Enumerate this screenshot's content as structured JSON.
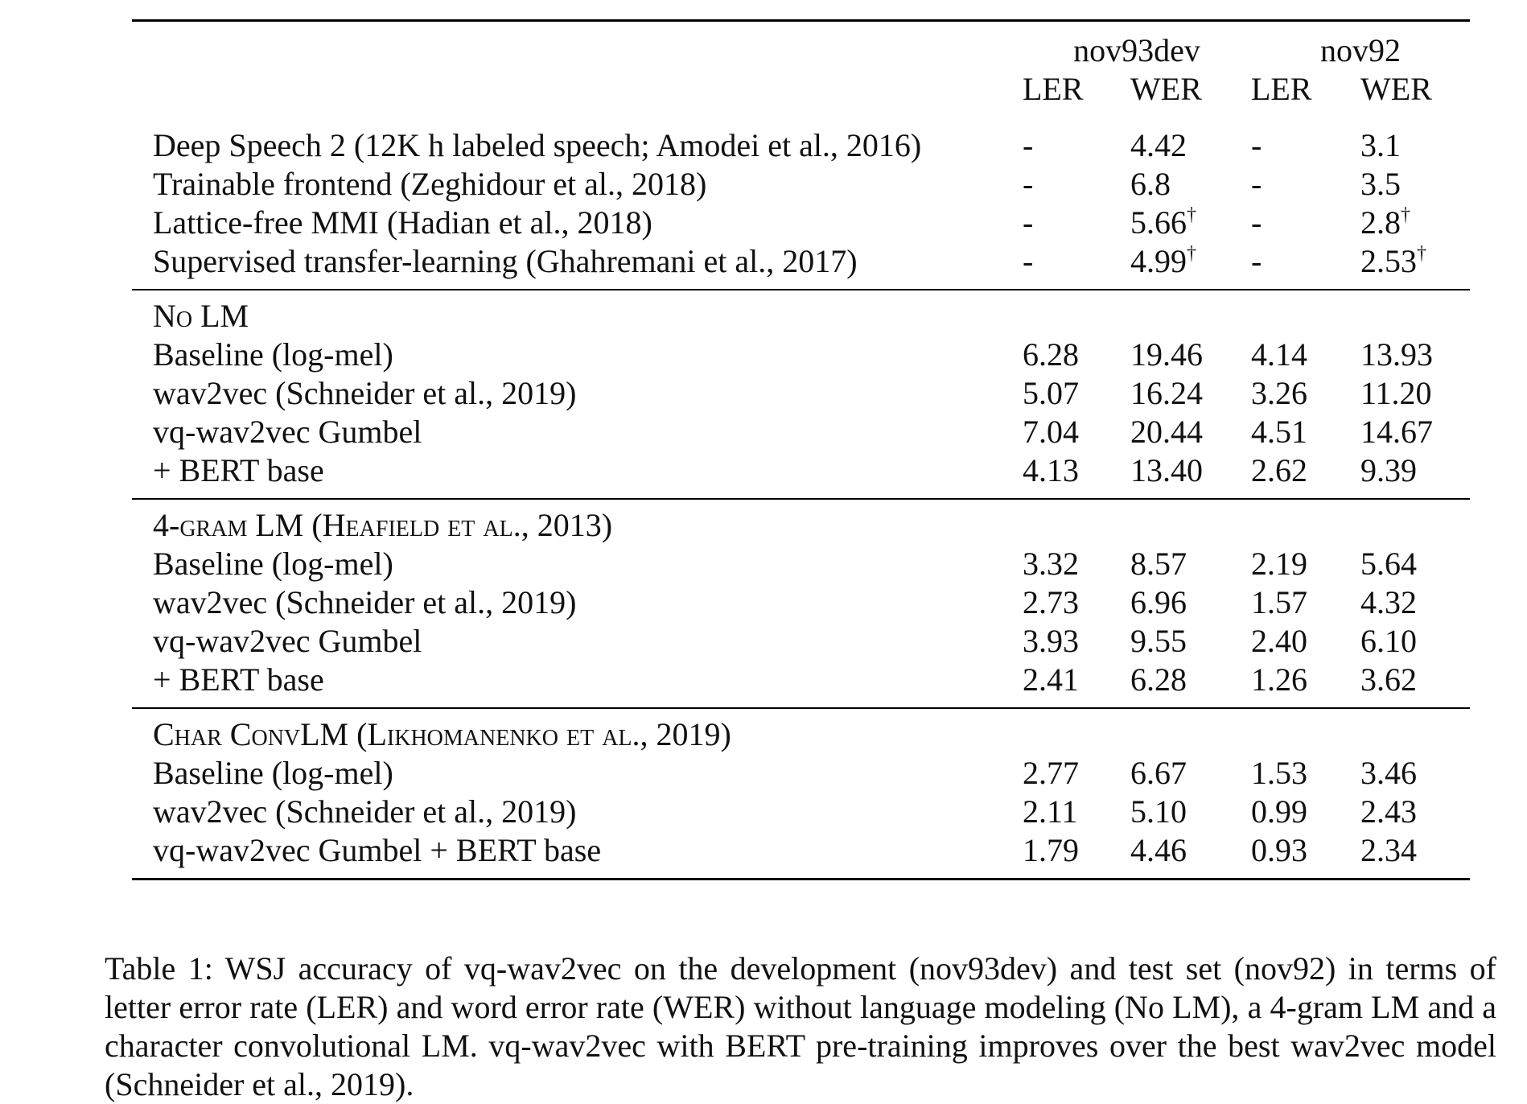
{
  "table": {
    "groups": [
      "nov93dev",
      "nov92"
    ],
    "subcols": [
      "LER",
      "WER",
      "LER",
      "WER"
    ],
    "prior_work": [
      {
        "name": "Deep Speech 2 (12K h labeled speech; Amodei et al., 2016)",
        "vals": [
          "-",
          "4.42",
          "-",
          "3.1"
        ],
        "sup": [
          "",
          "",
          "",
          ""
        ]
      },
      {
        "name": "Trainable frontend (Zeghidour et al., 2018)",
        "vals": [
          "-",
          "6.8",
          "-",
          "3.5"
        ],
        "sup": [
          "",
          "",
          "",
          ""
        ]
      },
      {
        "name": "Lattice-free MMI (Hadian et al., 2018)",
        "vals": [
          "-",
          "5.66",
          "-",
          "2.8"
        ],
        "sup": [
          "",
          "†",
          "",
          "†"
        ]
      },
      {
        "name": "Supervised transfer-learning (Ghahremani et al., 2017)",
        "vals": [
          "-",
          "4.99",
          "-",
          "2.53"
        ],
        "sup": [
          "",
          "†",
          "",
          "†"
        ]
      }
    ],
    "sections": [
      {
        "title": "No LM",
        "rows": [
          {
            "name": "Baseline (log-mel)",
            "vals": [
              "6.28",
              "19.46",
              "4.14",
              "13.93"
            ],
            "bold": false
          },
          {
            "name": "wav2vec (Schneider et al., 2019)",
            "vals": [
              "5.07",
              "16.24",
              "3.26",
              "11.20"
            ],
            "bold": false
          },
          {
            "name": "vq-wav2vec Gumbel",
            "vals": [
              "7.04",
              "20.44",
              "4.51",
              "14.67"
            ],
            "bold": false
          },
          {
            "name": "+ BERT base",
            "vals": [
              "4.13",
              "13.40",
              "2.62",
              "9.39"
            ],
            "bold": true
          }
        ]
      },
      {
        "title": "4-gram LM (Heafield et al., 2013)",
        "rows": [
          {
            "name": "Baseline (log-mel)",
            "vals": [
              "3.32",
              "8.57",
              "2.19",
              "5.64"
            ],
            "bold": false
          },
          {
            "name": "wav2vec (Schneider et al., 2019)",
            "vals": [
              "2.73",
              "6.96",
              "1.57",
              "4.32"
            ],
            "bold": false
          },
          {
            "name": "vq-wav2vec Gumbel",
            "vals": [
              "3.93",
              "9.55",
              "2.40",
              "6.10"
            ],
            "bold": false
          },
          {
            "name": "+ BERT base",
            "vals": [
              "2.41",
              "6.28",
              "1.26",
              "3.62"
            ],
            "bold": true
          }
        ]
      },
      {
        "title": "Char ConvLM (Likhomanenko et al., 2019)",
        "rows": [
          {
            "name": "Baseline (log-mel)",
            "vals": [
              "2.77",
              "6.67",
              "1.53",
              "3.46"
            ],
            "bold": false
          },
          {
            "name": "wav2vec (Schneider et al., 2019)",
            "vals": [
              "2.11",
              "5.10",
              "0.99",
              "2.43"
            ],
            "bold": false
          },
          {
            "name": "vq-wav2vec Gumbel + BERT base",
            "vals": [
              "1.79",
              "4.46",
              "0.93",
              "2.34"
            ],
            "bold": true
          }
        ]
      }
    ]
  },
  "caption": "Table 1: WSJ accuracy of vq-wav2vec on the development (nov93dev) and test set (nov92) in terms of letter error rate (LER) and word error rate (WER) without language modeling (No LM), a 4-gram LM and a character convolutional LM. vq-wav2vec with BERT pre-training improves over the best wav2vec model (Schneider et al., 2019)."
}
